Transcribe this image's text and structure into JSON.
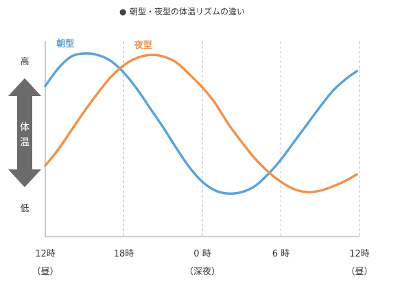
{
  "chart_data": {
    "type": "line",
    "title": "朝型・夜型の体温リズムの違い",
    "title_bullet": "●",
    "x_ticks": [
      {
        "x": 0,
        "label": "12時",
        "sublabel": "（昼）"
      },
      {
        "x": 6,
        "label": "18時",
        "sublabel": ""
      },
      {
        "x": 12,
        "label": "0 時",
        "sublabel": "（深夜）"
      },
      {
        "x": 18,
        "label": "6 時",
        "sublabel": ""
      },
      {
        "x": 24,
        "label": "12時",
        "sublabel": "（昼）"
      }
    ],
    "xlim": [
      0,
      24
    ],
    "ylim": [
      0,
      1
    ],
    "y_labels": {
      "high": "高",
      "low": "低"
    },
    "axis_arrow_label": "体温",
    "grid": "vertical dashed",
    "series": [
      {
        "name": "朝型",
        "color": "#5ba3d6",
        "x": [
          0,
          1,
          2,
          3,
          4,
          5,
          6,
          7,
          8,
          9,
          10,
          11,
          12,
          13,
          14,
          15,
          16,
          17,
          18,
          19,
          20,
          21,
          22,
          23,
          23.8
        ],
        "y": [
          0.78,
          0.9,
          0.98,
          1.0,
          0.99,
          0.95,
          0.87,
          0.76,
          0.63,
          0.5,
          0.36,
          0.23,
          0.13,
          0.07,
          0.05,
          0.06,
          0.1,
          0.18,
          0.28,
          0.4,
          0.52,
          0.64,
          0.75,
          0.83,
          0.88
        ]
      },
      {
        "name": "夜型",
        "color": "#f0924d",
        "x": [
          0,
          1,
          2,
          3,
          4,
          5,
          6,
          7,
          8,
          9,
          10,
          11,
          12,
          13,
          14,
          15,
          16,
          17,
          18,
          19,
          20,
          21,
          22,
          23,
          23.8
        ],
        "y": [
          0.24,
          0.35,
          0.48,
          0.61,
          0.73,
          0.84,
          0.92,
          0.97,
          0.99,
          0.98,
          0.94,
          0.86,
          0.77,
          0.66,
          0.52,
          0.4,
          0.29,
          0.2,
          0.13,
          0.08,
          0.06,
          0.07,
          0.1,
          0.14,
          0.18
        ]
      }
    ]
  }
}
